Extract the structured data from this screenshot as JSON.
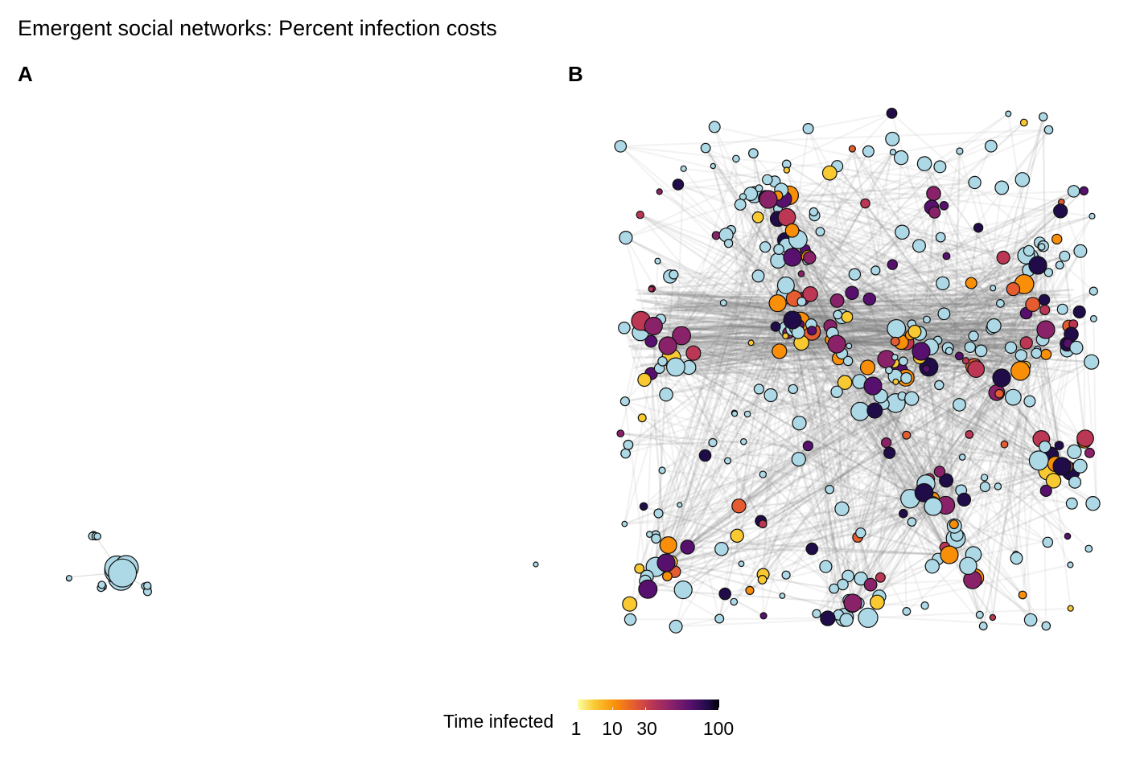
{
  "title": "Emergent social networks: Percent infection costs",
  "panels": {
    "a": {
      "label": "A"
    },
    "b": {
      "label": "B"
    }
  },
  "legend": {
    "title": "Time infected",
    "ticks": [
      "1",
      "10",
      "30",
      "100"
    ],
    "scale": "log",
    "range": [
      1,
      100
    ],
    "colormap": "inferno (reversed)",
    "uninfected_color": "#add8e6"
  },
  "chart_data": [
    {
      "type": "scatter",
      "kind": "network graph",
      "panel": "A",
      "node_color_uninfected": "#add8e6",
      "edge_color": "#d9d9d9"
    },
    {
      "type": "scatter",
      "kind": "network graph",
      "panel": "B",
      "node_color_uninfected": "#add8e6",
      "edge_color": "#a0a0a0"
    }
  ]
}
